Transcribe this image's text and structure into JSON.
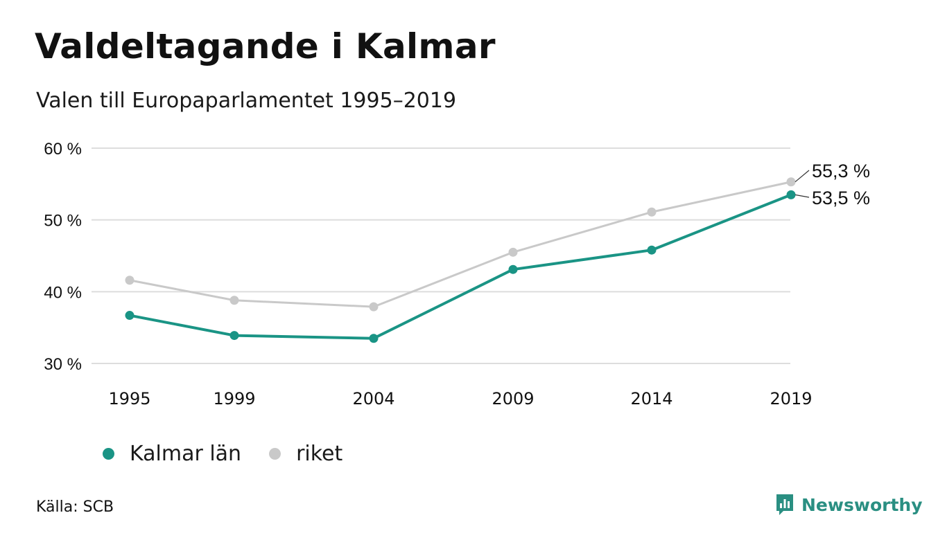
{
  "header": {
    "title": "Valdeltagande i Kalmar",
    "subtitle": "Valen till Europaparlamentet 1995–2019"
  },
  "chart_data": {
    "type": "line",
    "x": [
      "1995",
      "1999",
      "2004",
      "2009",
      "2014",
      "2019"
    ],
    "series": [
      {
        "name": "Kalmar län",
        "color": "#1a9485",
        "values": [
          36.7,
          33.9,
          33.5,
          43.1,
          45.8,
          53.5
        ],
        "end_label": "53,5 %"
      },
      {
        "name": "riket",
        "color": "#c9c9c9",
        "values": [
          41.6,
          38.8,
          37.9,
          45.5,
          51.1,
          55.3
        ],
        "end_label": "55,3 %"
      }
    ],
    "y_ticks": [
      {
        "value": 30,
        "label": "30 %"
      },
      {
        "value": 40,
        "label": "40 %"
      },
      {
        "value": 50,
        "label": "50 %"
      },
      {
        "value": 60,
        "label": "60 %"
      }
    ],
    "ylim": [
      30,
      60
    ],
    "grid": true,
    "legend_position": "bottom-left"
  },
  "footer": {
    "source": "Källa: SCB",
    "brand": "Newsworthy",
    "brand_color": "#2a8f82"
  }
}
